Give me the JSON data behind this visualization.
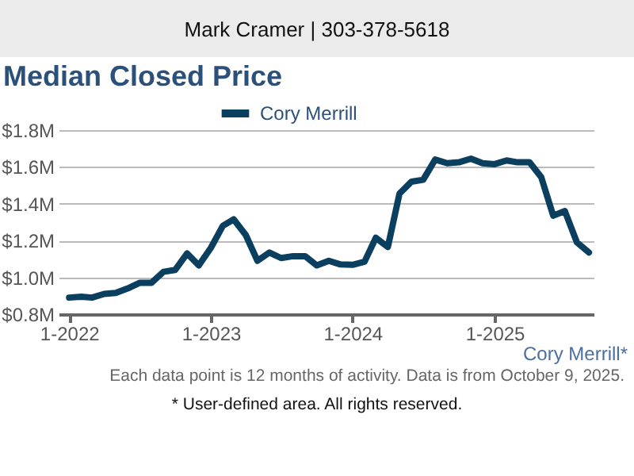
{
  "chart_data": {
    "type": "line",
    "title": "Median Closed Price",
    "annotations": [
      "Mark Cramer | 303-378-5618",
      "Cory Merrill*",
      "Each data point is 12 months of activity. Data is from October 9, 2025.",
      "* User-defined area. All rights reserved."
    ],
    "x": [
      "2022-01",
      "2022-02",
      "2022-03",
      "2022-04",
      "2022-05",
      "2022-06",
      "2022-07",
      "2022-08",
      "2022-09",
      "2022-10",
      "2022-11",
      "2022-12",
      "2023-01",
      "2023-02",
      "2023-03",
      "2023-04",
      "2023-05",
      "2023-06",
      "2023-07",
      "2023-08",
      "2023-09",
      "2023-10",
      "2023-11",
      "2023-12",
      "2024-01",
      "2024-02",
      "2024-03",
      "2024-04",
      "2024-05",
      "2024-06",
      "2024-07",
      "2024-08",
      "2024-09",
      "2024-10",
      "2024-11",
      "2024-12",
      "2025-01",
      "2025-02",
      "2025-03",
      "2025-04",
      "2025-05",
      "2025-06",
      "2025-07",
      "2025-08",
      "2025-09"
    ],
    "series": [
      {
        "name": "Cory Merrill",
        "color": "#0b3f5f",
        "values": [
          0.89,
          0.895,
          0.89,
          0.91,
          0.915,
          0.94,
          0.97,
          0.97,
          1.03,
          1.04,
          1.13,
          1.065,
          1.16,
          1.28,
          1.315,
          1.23,
          1.09,
          1.135,
          1.105,
          1.115,
          1.115,
          1.065,
          1.09,
          1.07,
          1.068,
          1.085,
          1.215,
          1.165,
          1.455,
          1.52,
          1.53,
          1.64,
          1.62,
          1.625,
          1.645,
          1.62,
          1.615,
          1.635,
          1.625,
          1.625,
          1.545,
          1.335,
          1.36,
          1.19,
          1.135
        ]
      }
    ],
    "xlim": [
      "2021-12-05",
      "2025-09-15"
    ],
    "xticks": [
      {
        "value": "2022-01",
        "label": "1-2022"
      },
      {
        "value": "2023-01",
        "label": "1-2023"
      },
      {
        "value": "2024-01",
        "label": "1-2024"
      },
      {
        "value": "2025-01",
        "label": "1-2025"
      }
    ],
    "ylim": [
      0.8,
      1.8
    ],
    "yticks": [
      {
        "value": 0.8,
        "label": "$0.8M"
      },
      {
        "value": 1.0,
        "label": "$1.0M"
      },
      {
        "value": 1.2,
        "label": "$1.2M"
      },
      {
        "value": 1.4,
        "label": "$1.4M"
      },
      {
        "value": 1.6,
        "label": "$1.6M"
      },
      {
        "value": 1.8,
        "label": "$1.8M"
      }
    ],
    "grid": "y",
    "legend": "top",
    "marker": "none",
    "line_style": "solid"
  }
}
